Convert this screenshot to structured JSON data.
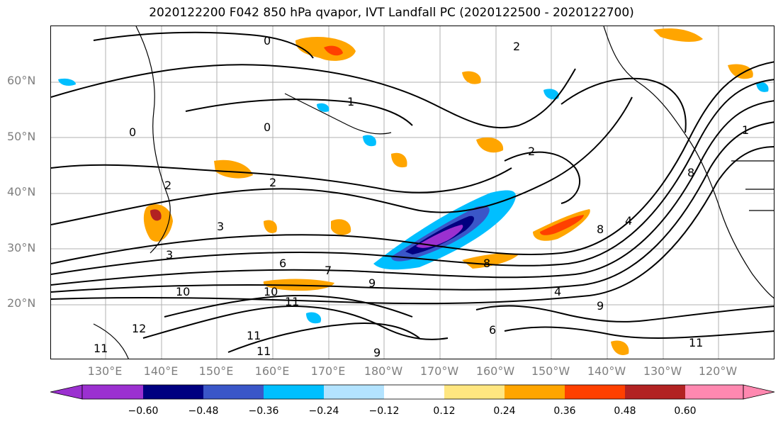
{
  "title": "2020122200 F042 850 hPa qvapor, IVT Landfall PC (2020122500 - 2020122700)",
  "map": {
    "lat_labels": [
      "60°N",
      "50°N",
      "40°N",
      "30°N",
      "20°N"
    ],
    "lon_labels": [
      "130°E",
      "140°E",
      "150°E",
      "160°E",
      "170°E",
      "180°W",
      "170°W",
      "160°W",
      "150°W",
      "140°W",
      "130°W",
      "120°W"
    ],
    "contour_labels": [
      "0",
      "0",
      "0",
      "1",
      "1",
      "2",
      "2",
      "2",
      "3",
      "3",
      "6",
      "7",
      "8",
      "8",
      "9",
      "9",
      "10",
      "10",
      "11",
      "11",
      "11",
      "12",
      "11",
      "9",
      "6",
      "4",
      "2",
      "8",
      "11",
      "4"
    ]
  },
  "colorbar": {
    "colors": [
      "#9b30d0",
      "#000080",
      "#3a56c8",
      "#00bfff",
      "#b3e3ff",
      "#ffffff",
      "#ffe680",
      "#ffa500",
      "#ff4000",
      "#b22222",
      "#ff88b0"
    ],
    "tick_labels": [
      "−0.60",
      "−0.48",
      "−0.36",
      "−0.24",
      "−0.12",
      "0.12",
      "0.24",
      "0.36",
      "0.48",
      "0.60"
    ]
  }
}
